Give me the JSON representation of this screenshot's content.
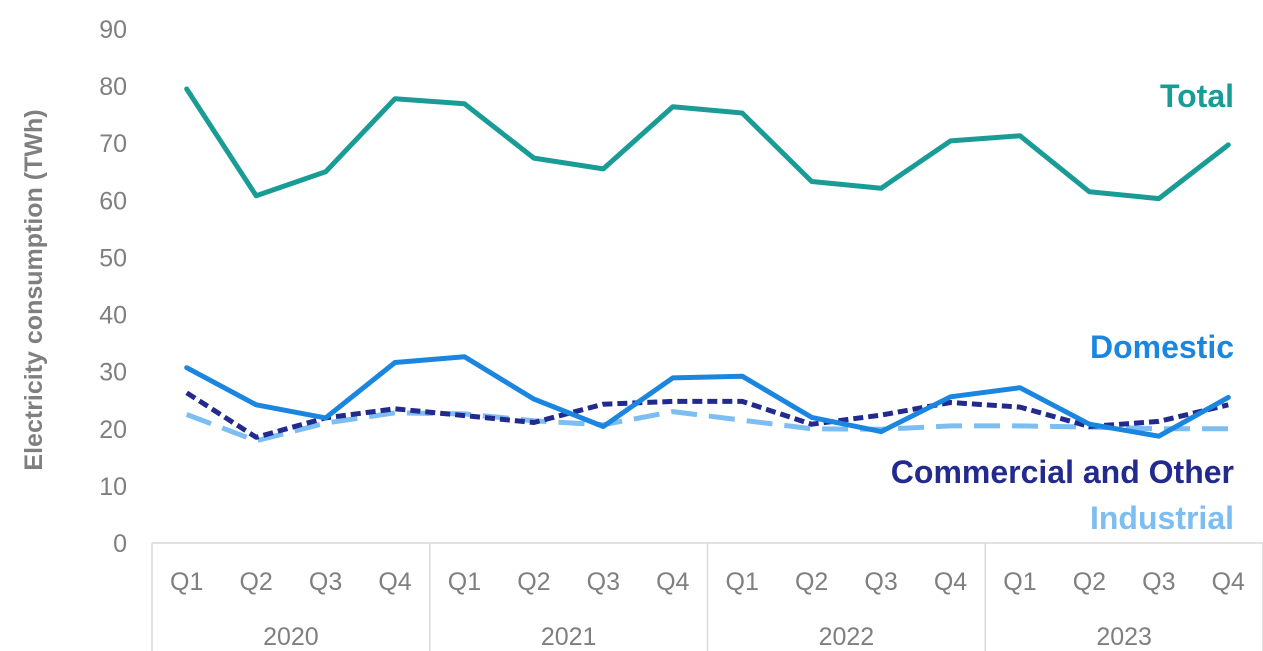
{
  "chart_data": {
    "type": "line",
    "ylabel": "Electricity consumption  (TWh)",
    "xlabel": "",
    "ylim": [
      0,
      90
    ],
    "yticks": [
      "0",
      "10",
      "20",
      "30",
      "40",
      "50",
      "60",
      "70",
      "80",
      "90"
    ],
    "grid": false,
    "years": [
      "2020",
      "2021",
      "2022",
      "2023"
    ],
    "quarters": [
      "Q1",
      "Q2",
      "Q3",
      "Q4"
    ],
    "categories": [
      "2020 Q1",
      "2020 Q2",
      "2020 Q3",
      "2020 Q4",
      "2021 Q1",
      "2021 Q2",
      "2021 Q3",
      "2021 Q4",
      "2022 Q1",
      "2022 Q2",
      "2022 Q3",
      "2022 Q4",
      "2023 Q1",
      "2023 Q2",
      "2023 Q3",
      "2023 Q4"
    ],
    "series": [
      {
        "name": "Total",
        "color": "#1a9c96",
        "style": "solid",
        "values": [
          79.5,
          60.8,
          65.0,
          77.8,
          76.9,
          67.4,
          65.5,
          76.4,
          75.3,
          63.3,
          62.1,
          70.4,
          71.3,
          61.5,
          60.3,
          69.7
        ]
      },
      {
        "name": "Domestic",
        "color": "#1a86e0",
        "style": "solid",
        "values": [
          30.7,
          24.2,
          21.9,
          31.6,
          32.6,
          25.2,
          20.4,
          28.9,
          29.2,
          22.0,
          19.5,
          25.6,
          27.2,
          20.8,
          18.7,
          25.5
        ]
      },
      {
        "name": "Commercial and Other",
        "color": "#222a8e",
        "style": "short-dash",
        "values": [
          26.3,
          18.5,
          21.9,
          23.5,
          22.3,
          21.1,
          24.3,
          24.8,
          24.8,
          20.8,
          22.4,
          24.6,
          23.8,
          20.4,
          21.3,
          24.2
        ]
      },
      {
        "name": "Industrial",
        "color": "#7cbdf2",
        "style": "long-dash",
        "values": [
          22.5,
          17.9,
          21.0,
          22.8,
          22.6,
          21.4,
          20.7,
          23.0,
          21.5,
          20.0,
          19.9,
          20.5,
          20.5,
          20.3,
          20.0,
          20.0
        ]
      }
    ]
  }
}
